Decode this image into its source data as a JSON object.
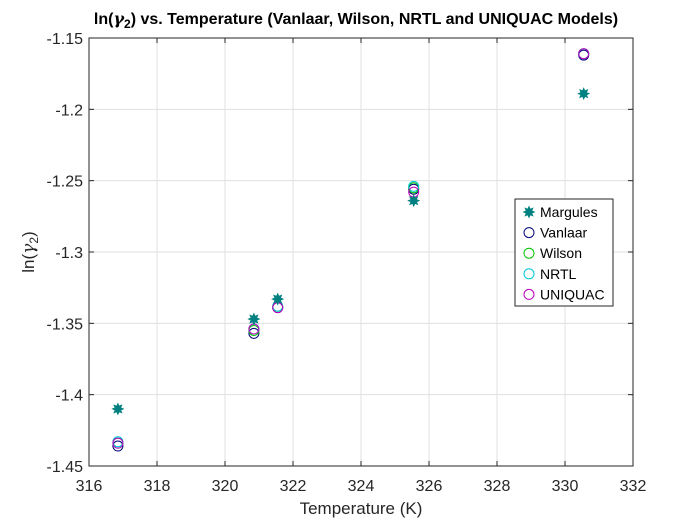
{
  "chart_data": {
    "type": "scatter",
    "title": "ln(γ2) vs. Temperature (Vanlaar, Wilson, NRTL and UNIQUAC Models)",
    "xlabel": "Temperature (K)",
    "ylabel": "ln(γ2)",
    "xlim": [
      316,
      332
    ],
    "ylim": [
      -1.45,
      -1.15
    ],
    "xticks": [
      "316",
      "318",
      "320",
      "322",
      "324",
      "326",
      "328",
      "330",
      "332"
    ],
    "yticks": [
      "-1.15",
      "-1.2",
      "-1.25",
      "-1.3",
      "-1.35",
      "-1.4",
      "-1.45"
    ],
    "grid": true,
    "legend_position": "right-center",
    "x": [
      316.85,
      320.85,
      321.55,
      325.55,
      330.55
    ],
    "series": [
      {
        "name": "Margules",
        "marker": "filled-star",
        "color": "#008080",
        "values": [
          -1.41,
          -1.347,
          -1.333,
          -1.264,
          -1.189
        ]
      },
      {
        "name": "Vanlaar",
        "marker": "circle",
        "color": "#00007f",
        "values": [
          -1.436,
          -1.357,
          -1.339,
          -1.256,
          -1.162
        ]
      },
      {
        "name": "Wilson",
        "marker": "circle",
        "color": "#00c000",
        "values": [
          -1.434,
          -1.355,
          -1.338,
          -1.255,
          -1.161
        ]
      },
      {
        "name": "NRTL",
        "marker": "circle",
        "color": "#00c8d8",
        "values": [
          -1.433,
          -1.354,
          -1.338,
          -1.254,
          -1.161
        ]
      },
      {
        "name": "UNIQUAC",
        "marker": "circle",
        "color": "#c000c0",
        "values": [
          -1.434,
          -1.354,
          -1.339,
          -1.258,
          -1.161
        ]
      }
    ]
  }
}
